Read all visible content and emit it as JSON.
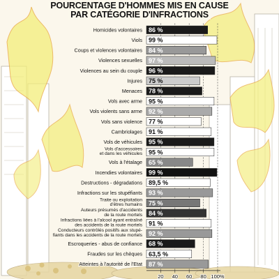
{
  "title_lines": [
    "POURCENTAGE D'HOMMES MIS EN CAUSE",
    "PAR CATÉGORIE D'INFRACTIONS"
  ],
  "chart_data": {
    "type": "bar",
    "orientation": "horizontal",
    "title": "POURCENTAGE D'HOMMES MIS EN CAUSE PAR CATÉGORIE D'INFRACTIONS",
    "categories": [
      [
        "Homicides volontaires"
      ],
      [
        "Viols"
      ],
      [
        "Coups et violences volontaires"
      ],
      [
        "Violences sexuelles"
      ],
      [
        "Violences au sein du couple"
      ],
      [
        "Injures"
      ],
      [
        "Menaces"
      ],
      [
        "Vols avec arme"
      ],
      [
        "Vols violents sans arme"
      ],
      [
        "Vols sans violence"
      ],
      [
        "Cambriolages"
      ],
      [
        "Vols de véhicules"
      ],
      [
        "Vols d'accessoires",
        "et dans les véhicules"
      ],
      [
        "Vols à l'étalage"
      ],
      [
        "Incendies volontaires"
      ],
      [
        "Destructions - dégradations"
      ],
      [
        "Infractions sur les stupéfiants"
      ],
      [
        "Traite ou exploitation",
        "d'êtres humains"
      ],
      [
        "Auteurs présumés d'accidents",
        "de la route mortels"
      ],
      [
        "Infractions liées à l'alcool ayant entraîné",
        "des accidents de la route mortels"
      ],
      [
        "Conducteurs contrôlés positifs aux stupé-",
        "fiants dans les accidents de la route mortels"
      ],
      [
        "Escroqueries - abus de confiance"
      ],
      [
        "Fraudes sur les chèques"
      ],
      [
        "Atteintes à l'autorité de l'Etat"
      ]
    ],
    "values": [
      86,
      99,
      84,
      97,
      96,
      75,
      78,
      95,
      92,
      77,
      91,
      95,
      95,
      65,
      99,
      89.5,
      93,
      75,
      84,
      91,
      92,
      68,
      63.5,
      87
    ],
    "value_labels": [
      "86 %",
      "99 %",
      "84 %",
      "97 %",
      "96 %",
      "75 %",
      "78 %",
      "95 %",
      "92 %",
      "77 %",
      "91 %",
      "95 %",
      "95 %",
      "65 %",
      "99 %",
      "89,5 %",
      "93 %",
      "75 %",
      "84 %",
      "91 %",
      "92 %",
      "68 %",
      "63,5 %",
      "87 %"
    ],
    "bar_colors": [
      "#1a1a1a",
      "#ffffff",
      "#999999",
      "#bbbbbb",
      "#1a1a1a",
      "#cccccc",
      "#1a1a1a",
      "#ffffff",
      "#aaaaaa",
      "#ffffff",
      "#ffffff",
      "#1a1a1a",
      "#ffffff",
      "#888888",
      "#111111",
      "#ffffff",
      "#999999",
      "#777777",
      "#333333",
      "#ffffff",
      "#999999",
      "#1a1a1a",
      "#ffffff",
      "#999999"
    ],
    "label_colors": [
      "#ffffff",
      "#111111",
      "#ffffff",
      "#ffffff",
      "#ffffff",
      "#111111",
      "#ffffff",
      "#111111",
      "#ffffff",
      "#111111",
      "#111111",
      "#ffffff",
      "#111111",
      "#ffffff",
      "#ffffff",
      "#111111",
      "#ffffff",
      "#ffffff",
      "#ffffff",
      "#111111",
      "#ffffff",
      "#ffffff",
      "#111111",
      "#ffffff"
    ],
    "x_ticks": [
      20,
      40,
      60,
      80,
      100
    ],
    "x_tick_labels": [
      "20",
      "40",
      "60",
      "80",
      "100%"
    ],
    "xlim": [
      0,
      100
    ]
  }
}
